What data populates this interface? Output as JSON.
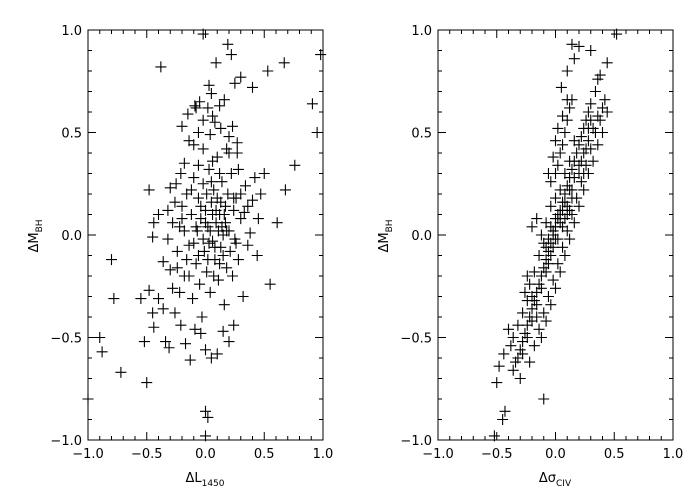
{
  "chart_data": [
    {
      "type": "scatter",
      "marker": "plus",
      "xlabel": "ΔL",
      "xlabel_subscript": "1450",
      "ylabel": "ΔM",
      "ylabel_subscript": "BH",
      "xlim": [
        -1.0,
        1.0
      ],
      "ylim": [
        -1.0,
        1.0
      ],
      "xticks": [
        -1.0,
        -0.5,
        0.0,
        0.5,
        1.0
      ],
      "yticks": [
        -1.0,
        -0.5,
        0.0,
        0.5,
        1.0
      ],
      "xtick_labels": [
        "−1.0",
        "−0.5",
        "0.0",
        "0.5",
        "1.0"
      ],
      "ytick_labels": [
        "−1.0",
        "−0.5",
        "0.0",
        "0.5",
        "1.0"
      ],
      "grid": false,
      "points": [
        [
          -1.0,
          -0.8
        ],
        [
          -0.9,
          -0.5
        ],
        [
          -0.88,
          -0.57
        ],
        [
          -0.78,
          -0.31
        ],
        [
          -0.8,
          -0.12
        ],
        [
          -0.72,
          -0.67
        ],
        [
          -0.5,
          -0.72
        ],
        [
          -0.52,
          -0.52
        ],
        [
          -0.55,
          -0.31
        ],
        [
          -0.48,
          -0.27
        ],
        [
          -0.45,
          -0.38
        ],
        [
          -0.44,
          -0.45
        ],
        [
          -0.4,
          -0.31
        ],
        [
          -0.36,
          -0.36
        ],
        [
          -0.34,
          -0.52
        ],
        [
          -0.31,
          -0.55
        ],
        [
          -0.38,
          0.82
        ],
        [
          -0.2,
          0.53
        ],
        [
          -0.15,
          0.59
        ],
        [
          -0.09,
          0.63
        ],
        [
          -0.05,
          0.65
        ],
        [
          -0.02,
          0.98
        ],
        [
          0.03,
          0.73
        ],
        [
          0.05,
          0.69
        ],
        [
          0.12,
          0.63
        ],
        [
          0.19,
          0.93
        ],
        [
          0.22,
          0.88
        ],
        [
          0.25,
          0.74
        ],
        [
          0.3,
          0.77
        ],
        [
          0.4,
          0.72
        ],
        [
          0.53,
          0.8
        ],
        [
          0.67,
          0.84
        ],
        [
          0.98,
          0.88
        ],
        [
          0.91,
          0.64
        ],
        [
          0.95,
          0.5
        ],
        [
          0.76,
          0.34
        ],
        [
          0.68,
          0.22
        ],
        [
          0.61,
          0.06
        ],
        [
          0.55,
          -0.24
        ],
        [
          0.36,
          -0.05
        ],
        [
          0.33,
          0.11
        ],
        [
          0.3,
          0.2
        ],
        [
          0.28,
          0.32
        ],
        [
          0.27,
          0.45
        ],
        [
          0.23,
          0.53
        ],
        [
          0.2,
          0.48
        ],
        [
          0.18,
          0.42
        ],
        [
          0.13,
          0.52
        ],
        [
          0.08,
          0.55
        ],
        [
          0.04,
          0.49
        ],
        [
          -0.02,
          0.56
        ],
        [
          -0.06,
          0.5
        ],
        [
          -0.1,
          0.44
        ],
        [
          -0.14,
          0.46
        ],
        [
          -0.18,
          0.35
        ],
        [
          -0.21,
          0.3
        ],
        [
          -0.25,
          0.25
        ],
        [
          -0.3,
          0.23
        ],
        [
          -0.32,
          0.12
        ],
        [
          -0.4,
          0.1
        ],
        [
          -0.45,
          -0.01
        ],
        [
          -0.48,
          0.22
        ],
        [
          -0.44,
          0.06
        ],
        [
          -0.36,
          -0.13
        ],
        [
          -0.32,
          -0.02
        ],
        [
          -0.3,
          -0.17
        ],
        [
          -0.28,
          -0.26
        ],
        [
          -0.24,
          -0.08
        ],
        [
          -0.22,
          0.04
        ],
        [
          -0.2,
          0.14
        ],
        [
          -0.18,
          -0.2
        ],
        [
          -0.16,
          0.2
        ],
        [
          -0.14,
          -0.05
        ],
        [
          -0.12,
          0.1
        ],
        [
          -0.11,
          -0.31
        ],
        [
          -0.1,
          0.28
        ],
        [
          -0.08,
          -0.14
        ],
        [
          -0.07,
          0.02
        ],
        [
          -0.06,
          0.18
        ],
        [
          -0.05,
          -0.24
        ],
        [
          -0.04,
          0.08
        ],
        [
          -0.03,
          -0.4
        ],
        [
          -0.02,
          0.25
        ],
        [
          -0.01,
          -0.08
        ],
        [
          0.0,
          0.12
        ],
        [
          0.01,
          -0.18
        ],
        [
          0.02,
          0.04
        ],
        [
          0.03,
          0.32
        ],
        [
          0.04,
          -0.28
        ],
        [
          0.05,
          0.16
        ],
        [
          0.06,
          -0.03
        ],
        [
          0.07,
          0.22
        ],
        [
          0.08,
          -0.12
        ],
        [
          0.09,
          0.06
        ],
        [
          0.1,
          0.38
        ],
        [
          0.11,
          -0.22
        ],
        [
          0.12,
          0.1
        ],
        [
          0.13,
          -0.06
        ],
        [
          0.14,
          0.26
        ],
        [
          0.15,
          0.0
        ],
        [
          0.16,
          -0.34
        ],
        [
          0.17,
          0.14
        ],
        [
          0.18,
          -0.16
        ],
        [
          0.19,
          0.2
        ],
        [
          0.2,
          0.02
        ],
        [
          0.21,
          -0.08
        ],
        [
          0.22,
          0.3
        ],
        [
          0.23,
          -0.2
        ],
        [
          0.24,
          0.12
        ],
        [
          0.25,
          -0.02
        ],
        [
          0.26,
          0.18
        ],
        [
          0.28,
          -0.12
        ],
        [
          0.3,
          0.08
        ],
        [
          0.32,
          -0.3
        ],
        [
          0.34,
          0.24
        ],
        [
          0.36,
          0.14
        ],
        [
          0.38,
          0.01
        ],
        [
          0.4,
          0.17
        ],
        [
          0.42,
          0.28
        ],
        [
          0.44,
          -0.1
        ],
        [
          0.47,
          0.2
        ],
        [
          0.5,
          0.3
        ],
        [
          0.45,
          0.08
        ],
        [
          0.27,
          0.4
        ],
        [
          0.24,
          -0.44
        ],
        [
          0.2,
          -0.52
        ],
        [
          0.15,
          -0.47
        ],
        [
          0.1,
          -0.58
        ],
        [
          0.05,
          -0.6
        ],
        [
          0.0,
          -0.56
        ],
        [
          -0.04,
          -0.48
        ],
        [
          -0.09,
          -0.46
        ],
        [
          -0.13,
          -0.61
        ],
        [
          -0.17,
          -0.53
        ],
        [
          -0.21,
          -0.44
        ],
        [
          -0.26,
          -0.38
        ],
        [
          -0.1,
          -0.04
        ],
        [
          -0.08,
          0.04
        ],
        [
          -0.06,
          -0.1
        ],
        [
          -0.04,
          0.14
        ],
        [
          -0.02,
          -0.02
        ],
        [
          0.0,
          0.06
        ],
        [
          0.02,
          -0.12
        ],
        [
          0.04,
          0.02
        ],
        [
          0.06,
          0.1
        ],
        [
          0.08,
          -0.06
        ],
        [
          0.1,
          0.18
        ],
        [
          0.12,
          -0.14
        ],
        [
          0.14,
          0.04
        ],
        [
          0.16,
          0.1
        ],
        [
          -0.12,
          0.22
        ],
        [
          -0.16,
          -0.12
        ],
        [
          -0.2,
          0.08
        ],
        [
          -0.24,
          -0.16
        ],
        [
          -0.28,
          0.06
        ],
        [
          -0.26,
          0.16
        ],
        [
          -0.22,
          -0.28
        ],
        [
          -0.18,
          0.02
        ],
        [
          -0.14,
          -0.2
        ],
        [
          0.0,
          -0.86
        ],
        [
          0.02,
          -0.89
        ],
        [
          0.0,
          -0.98
        ],
        [
          0.06,
          0.36
        ],
        [
          0.12,
          0.3
        ],
        [
          0.18,
          0.02
        ],
        [
          -0.06,
          0.34
        ],
        [
          -0.02,
          0.42
        ],
        [
          0.01,
          0.2
        ],
        [
          0.03,
          -0.04
        ],
        [
          0.05,
          0.26
        ],
        [
          0.07,
          -0.2
        ],
        [
          0.09,
          0.12
        ],
        [
          0.11,
          0.02
        ],
        [
          0.13,
          0.16
        ],
        [
          0.15,
          -0.1
        ],
        [
          0.17,
          0.06
        ],
        [
          0.02,
          0.62
        ],
        [
          0.06,
          0.58
        ],
        [
          -0.08,
          0.62
        ],
        [
          0.09,
          0.84
        ],
        [
          0.16,
          0.66
        ],
        [
          0.2,
          0.4
        ],
        [
          0.24,
          0.18
        ],
        [
          0.26,
          -0.04
        ]
      ]
    },
    {
      "type": "scatter",
      "marker": "plus",
      "xlabel": "Δσ",
      "xlabel_subscript": "CIV",
      "ylabel": "ΔM",
      "ylabel_subscript": "BH",
      "xlim": [
        -1.0,
        1.0
      ],
      "ylim": [
        -1.0,
        1.0
      ],
      "xticks": [
        -1.0,
        -0.5,
        0.0,
        0.5,
        1.0
      ],
      "yticks": [
        -1.0,
        -0.5,
        0.0,
        0.5,
        1.0
      ],
      "xtick_labels": [
        "−1.0",
        "−0.5",
        "0.0",
        "0.5",
        "1.0"
      ],
      "ytick_labels": [
        "−1.0",
        "−0.5",
        "0.0",
        "0.5",
        "1.0"
      ],
      "grid": false,
      "points": [
        [
          -0.52,
          -0.98
        ],
        [
          -0.5,
          -0.72
        ],
        [
          -0.45,
          -0.9
        ],
        [
          -0.43,
          -0.86
        ],
        [
          -0.1,
          -0.8
        ],
        [
          -0.32,
          -0.6
        ],
        [
          -0.3,
          -0.56
        ],
        [
          -0.28,
          -0.52
        ],
        [
          -0.26,
          -0.48
        ],
        [
          -0.24,
          -0.44
        ],
        [
          -0.22,
          -0.4
        ],
        [
          -0.2,
          -0.36
        ],
        [
          -0.18,
          -0.32
        ],
        [
          -0.16,
          -0.28
        ],
        [
          -0.14,
          -0.24
        ],
        [
          -0.12,
          -0.2
        ],
        [
          -0.1,
          -0.16
        ],
        [
          -0.08,
          -0.12
        ],
        [
          -0.06,
          -0.08
        ],
        [
          -0.04,
          -0.04
        ],
        [
          -0.02,
          0.0
        ],
        [
          0.0,
          0.04
        ],
        [
          0.02,
          0.08
        ],
        [
          0.04,
          0.12
        ],
        [
          0.06,
          0.16
        ],
        [
          0.08,
          0.2
        ],
        [
          0.1,
          0.24
        ],
        [
          0.12,
          0.28
        ],
        [
          0.14,
          0.32
        ],
        [
          0.16,
          0.36
        ],
        [
          0.18,
          0.4
        ],
        [
          0.2,
          0.44
        ],
        [
          0.22,
          0.48
        ],
        [
          0.24,
          0.52
        ],
        [
          0.26,
          0.56
        ],
        [
          0.28,
          0.6
        ],
        [
          0.3,
          0.64
        ],
        [
          0.34,
          0.7
        ],
        [
          0.38,
          0.78
        ],
        [
          0.44,
          0.84
        ],
        [
          0.52,
          0.98
        ],
        [
          0.4,
          0.62
        ],
        [
          0.36,
          0.58
        ],
        [
          0.32,
          0.52
        ],
        [
          0.28,
          0.46
        ],
        [
          0.24,
          0.4
        ],
        [
          0.2,
          0.34
        ],
        [
          0.16,
          0.28
        ],
        [
          0.12,
          0.22
        ],
        [
          0.08,
          0.16
        ],
        [
          0.04,
          0.1
        ],
        [
          0.0,
          -0.02
        ],
        [
          -0.04,
          -0.1
        ],
        [
          -0.08,
          -0.18
        ],
        [
          -0.12,
          -0.26
        ],
        [
          -0.16,
          -0.34
        ],
        [
          -0.2,
          -0.42
        ],
        [
          -0.24,
          -0.5
        ],
        [
          -0.28,
          -0.58
        ],
        [
          -0.34,
          -0.62
        ],
        [
          -0.38,
          -0.54
        ],
        [
          -0.36,
          -0.66
        ],
        [
          -0.3,
          -0.7
        ],
        [
          -0.22,
          -0.62
        ],
        [
          -0.18,
          -0.54
        ],
        [
          -0.14,
          -0.46
        ],
        [
          -0.1,
          -0.38
        ],
        [
          -0.06,
          -0.3
        ],
        [
          -0.02,
          -0.22
        ],
        [
          0.02,
          -0.14
        ],
        [
          0.06,
          -0.06
        ],
        [
          0.1,
          0.02
        ],
        [
          0.14,
          0.1
        ],
        [
          0.18,
          0.18
        ],
        [
          0.22,
          0.26
        ],
        [
          0.26,
          0.34
        ],
        [
          0.3,
          0.42
        ],
        [
          0.34,
          0.5
        ],
        [
          0.38,
          0.56
        ],
        [
          -0.1,
          -0.04
        ],
        [
          -0.08,
          0.06
        ],
        [
          -0.06,
          -0.14
        ],
        [
          -0.04,
          0.14
        ],
        [
          -0.02,
          -0.06
        ],
        [
          0.0,
          0.18
        ],
        [
          0.02,
          -0.02
        ],
        [
          0.04,
          0.22
        ],
        [
          0.06,
          0.04
        ],
        [
          0.08,
          0.3
        ],
        [
          0.1,
          0.1
        ],
        [
          0.12,
          0.36
        ],
        [
          0.14,
          0.18
        ],
        [
          0.16,
          0.46
        ],
        [
          -0.12,
          0.0
        ],
        [
          -0.14,
          -0.1
        ],
        [
          -0.16,
          0.08
        ],
        [
          -0.18,
          -0.18
        ],
        [
          -0.2,
          0.04
        ],
        [
          -0.22,
          -0.24
        ],
        [
          -0.24,
          -0.32
        ],
        [
          -0.26,
          -0.28
        ],
        [
          -0.06,
          0.3
        ],
        [
          -0.04,
          0.26
        ],
        [
          0.0,
          0.3
        ],
        [
          0.02,
          0.34
        ],
        [
          0.04,
          0.4
        ],
        [
          0.06,
          0.44
        ],
        [
          0.08,
          0.5
        ],
        [
          0.1,
          0.56
        ],
        [
          0.12,
          0.62
        ],
        [
          0.14,
          0.66
        ],
        [
          0.05,
          0.72
        ],
        [
          0.1,
          0.8
        ],
        [
          0.16,
          0.86
        ],
        [
          0.2,
          0.92
        ],
        [
          0.14,
          0.93
        ],
        [
          0.3,
          0.9
        ],
        [
          0.36,
          0.76
        ],
        [
          0.42,
          0.66
        ],
        [
          0.44,
          0.6
        ],
        [
          0.4,
          0.5
        ],
        [
          0.36,
          0.44
        ],
        [
          0.32,
          0.36
        ],
        [
          0.28,
          0.3
        ],
        [
          0.24,
          0.22
        ],
        [
          0.2,
          0.14
        ],
        [
          0.16,
          0.06
        ],
        [
          0.12,
          -0.02
        ],
        [
          0.08,
          -0.1
        ],
        [
          0.04,
          -0.18
        ],
        [
          0.0,
          -0.26
        ],
        [
          -0.04,
          -0.34
        ],
        [
          -0.08,
          -0.42
        ],
        [
          -0.12,
          -0.5
        ],
        [
          -0.16,
          -0.4
        ],
        [
          -0.2,
          -0.3
        ],
        [
          -0.24,
          -0.2
        ],
        [
          -0.28,
          -0.38
        ],
        [
          -0.32,
          -0.44
        ],
        [
          -0.36,
          -0.5
        ],
        [
          -0.4,
          -0.46
        ],
        [
          -0.44,
          -0.58
        ],
        [
          -0.48,
          -0.64
        ],
        [
          -0.02,
          0.38
        ],
        [
          0.0,
          0.46
        ],
        [
          0.02,
          0.52
        ],
        [
          0.06,
          0.58
        ],
        [
          0.1,
          0.66
        ],
        [
          0.02,
          0.1
        ],
        [
          0.0,
          0.08
        ],
        [
          -0.02,
          0.02
        ],
        [
          -0.04,
          0.04
        ],
        [
          -0.06,
          -0.02
        ],
        [
          -0.08,
          -0.06
        ],
        [
          0.04,
          0.06
        ],
        [
          0.06,
          0.12
        ],
        [
          0.08,
          0.08
        ],
        [
          0.1,
          0.14
        ],
        [
          0.12,
          0.12
        ],
        [
          0.14,
          0.22
        ],
        [
          0.2,
          0.3
        ],
        [
          0.22,
          0.36
        ],
        [
          0.24,
          0.3
        ],
        [
          0.26,
          0.42
        ],
        [
          0.28,
          0.52
        ],
        [
          0.3,
          0.56
        ]
      ]
    }
  ]
}
